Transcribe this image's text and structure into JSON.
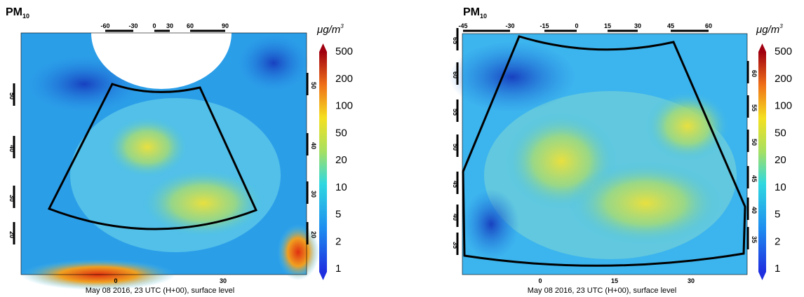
{
  "panels": [
    {
      "title": "PM",
      "title_sub": "10",
      "unit": "μg/m",
      "unit_sup": "3",
      "top_ticks": [
        -60,
        -30,
        0,
        30,
        60,
        90
      ],
      "left_ticks": [
        50,
        40,
        30,
        20
      ],
      "right_ticks": [
        50,
        40,
        30,
        20
      ],
      "bottom_ticks": [
        0,
        30
      ],
      "colorbar_labels": [
        500,
        200,
        100,
        50,
        20,
        10,
        5,
        2,
        1
      ],
      "caption": "May 08 2016, 23 UTC (H+00), surface level"
    },
    {
      "title": "PM",
      "title_sub": "10",
      "unit": "μg/m",
      "unit_sup": "3",
      "top_ticks": [
        -45,
        -30,
        -15,
        0,
        15,
        30,
        45,
        60
      ],
      "left_ticks": [
        65,
        60,
        55,
        50,
        45,
        40,
        35
      ],
      "right_ticks": [
        60,
        55,
        50,
        45,
        40,
        35
      ],
      "bottom_ticks": [
        0,
        15,
        30
      ],
      "colorbar_labels": [
        500,
        200,
        100,
        50,
        20,
        10,
        5,
        2,
        1
      ],
      "caption": "May 08 2016, 23 UTC (H+00), surface level"
    }
  ]
}
